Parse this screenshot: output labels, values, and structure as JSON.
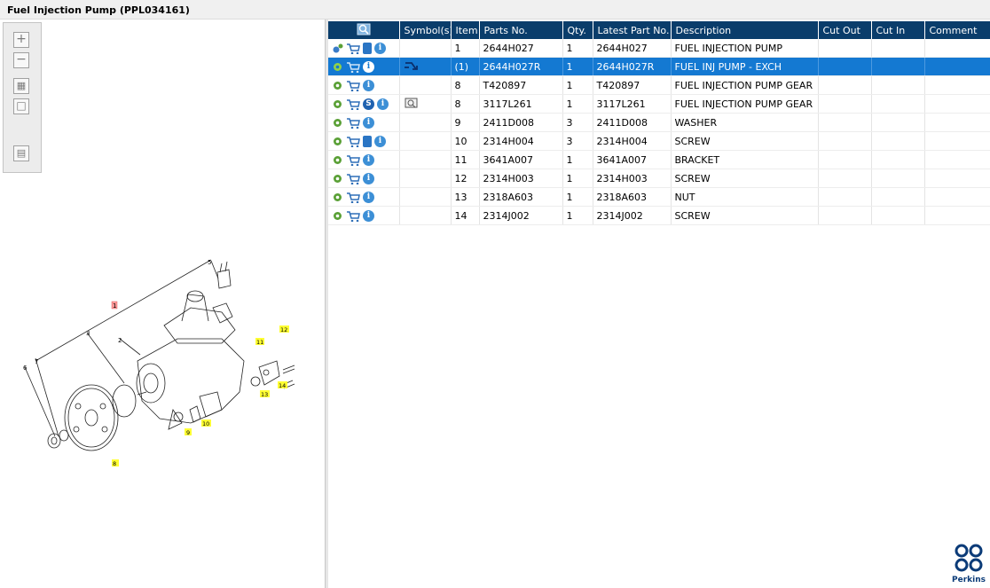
{
  "window": {
    "title": "Fuel Injection Pump (PPL034161)"
  },
  "toolbar": {
    "zoom_in": "+",
    "zoom_out": "−",
    "fit_all": "▦",
    "fit_window": "□",
    "expand_list": "▤"
  },
  "drawing": {
    "callouts": [
      "1",
      "2",
      "3",
      "4",
      "5",
      "6",
      "7",
      "8",
      "9",
      "10",
      "11",
      "12",
      "13",
      "14"
    ]
  },
  "table": {
    "headers": {
      "symbols": "Symbol(s)",
      "item": "Item",
      "parts_no": "Parts No.",
      "qty": "Qty.",
      "latest_part_no": "Latest Part No.",
      "description": "Description",
      "cut_out": "Cut Out",
      "cut_in": "Cut In",
      "comment": "Comment"
    },
    "rows": [
      {
        "item": "1",
        "parts_no": "2644H027",
        "qty": "1",
        "latest": "2644H027",
        "desc": "FUEL INJECTION PUMP"
      },
      {
        "item": "(1)",
        "parts_no": "2644H027R",
        "qty": "1",
        "latest": "2644H027R",
        "desc": "FUEL INJ PUMP - EXCH"
      },
      {
        "item": "8",
        "parts_no": "T420897",
        "qty": "1",
        "latest": "T420897",
        "desc": "FUEL INJECTION PUMP GEAR"
      },
      {
        "item": "8",
        "parts_no": "3117L261",
        "qty": "1",
        "latest": "3117L261",
        "desc": "FUEL INJECTION PUMP GEAR"
      },
      {
        "item": "9",
        "parts_no": "2411D008",
        "qty": "3",
        "latest": "2411D008",
        "desc": "WASHER"
      },
      {
        "item": "10",
        "parts_no": "2314H004",
        "qty": "3",
        "latest": "2314H004",
        "desc": "SCREW"
      },
      {
        "item": "11",
        "parts_no": "3641A007",
        "qty": "1",
        "latest": "3641A007",
        "desc": "BRACKET"
      },
      {
        "item": "12",
        "parts_no": "2314H003",
        "qty": "1",
        "latest": "2314H003",
        "desc": "SCREW"
      },
      {
        "item": "13",
        "parts_no": "2318A603",
        "qty": "1",
        "latest": "2318A603",
        "desc": "NUT"
      },
      {
        "item": "14",
        "parts_no": "2314J002",
        "qty": "1",
        "latest": "2314J002",
        "desc": "SCREW"
      }
    ],
    "info_glyph": "i",
    "s_glyph": "S"
  },
  "brand": {
    "name": "Perkins"
  },
  "colors": {
    "header_bg": "#0a3d6b",
    "selected_row": "#1479d2",
    "callout_yellow": "#ffff33",
    "callout_red": "#ff9999"
  }
}
